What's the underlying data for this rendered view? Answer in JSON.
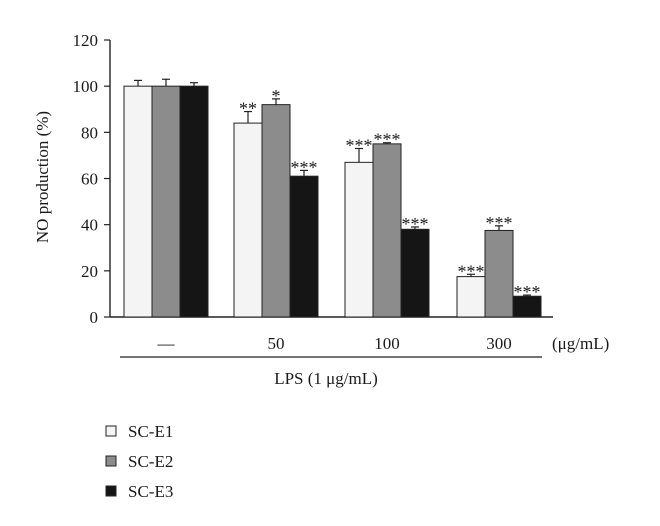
{
  "chart_data": {
    "type": "bar",
    "ylabel": "NO production (%)",
    "ylim": [
      0,
      120
    ],
    "yticks": [
      "0",
      "20",
      "40",
      "60",
      "80",
      "100",
      "120"
    ],
    "categories": [
      "—",
      "50",
      "100",
      "300"
    ],
    "unit_label": "(μg/mL)",
    "group_label": "LPS (1 μg/mL)",
    "grid": false,
    "legend_position": "bottom-left",
    "series": [
      {
        "name": "SC-E1",
        "color": "#f4f4f4",
        "values": [
          100,
          84,
          67,
          17.5
        ],
        "errors": [
          2.5,
          5,
          6,
          1
        ],
        "significance": [
          "",
          "**",
          "***",
          "***"
        ]
      },
      {
        "name": "SC-E2",
        "color": "#8c8c8c",
        "values": [
          100,
          92,
          75,
          37.5
        ],
        "errors": [
          3,
          2.5,
          0.5,
          2
        ],
        "significance": [
          "",
          "*",
          "***",
          "***"
        ]
      },
      {
        "name": "SC-E3",
        "color": "#151515",
        "values": [
          100,
          61,
          38,
          9
        ],
        "errors": [
          1.5,
          2.5,
          1,
          0.5
        ],
        "significance": [
          "",
          "***",
          "***",
          "***"
        ]
      }
    ]
  }
}
